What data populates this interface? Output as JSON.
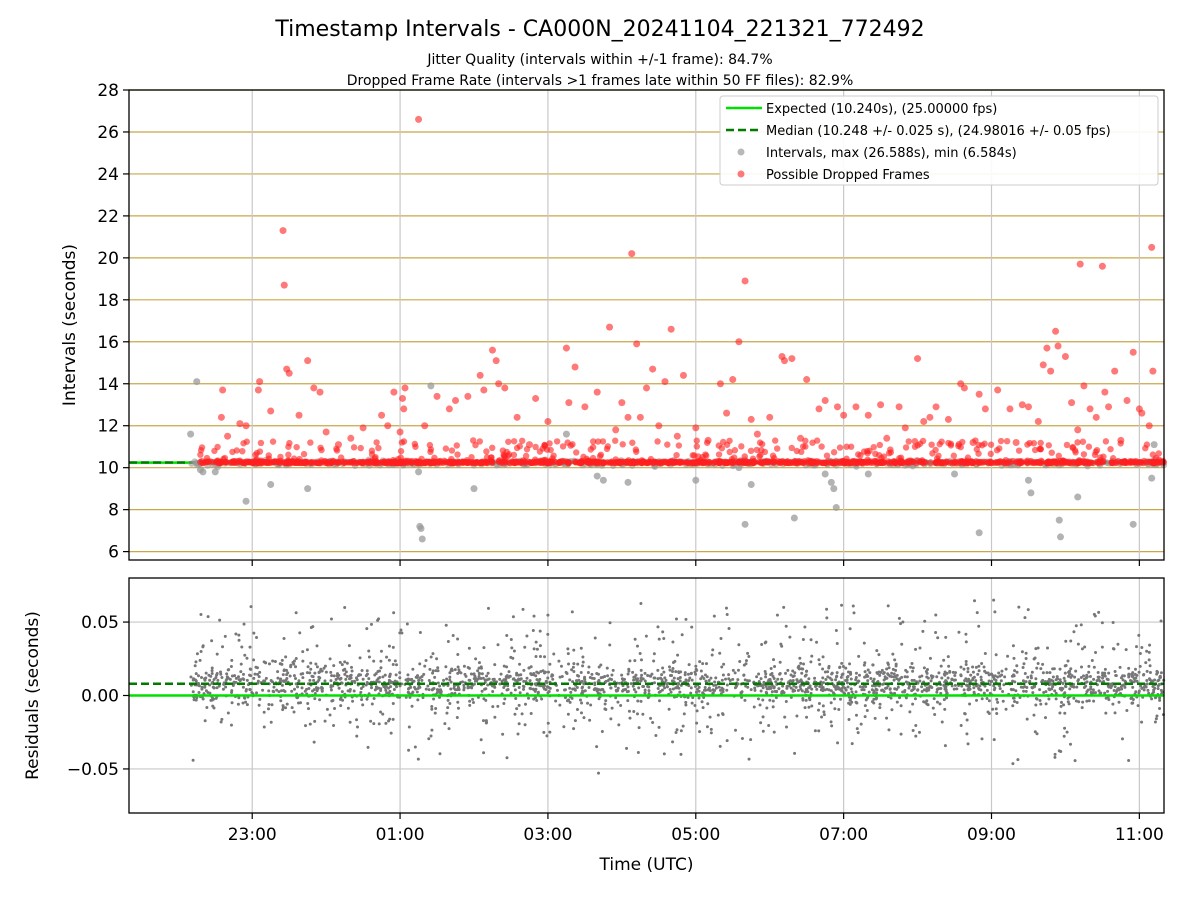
{
  "figure": {
    "title": "Timestamp Intervals - CA000N_20241104_221321_772492",
    "subtitle_jitter": "Jitter Quality (intervals within +/-1 frame): 84.7%",
    "subtitle_dropped": "Dropped Frame Rate (intervals >1 frames late within 50 FF files): 82.9%"
  },
  "colors": {
    "expected_line": "#00e000",
    "median_line": "#007a00",
    "intervals_points": "#9a9a9a",
    "dropped_points": "#ff2020",
    "residual_points": "#777777",
    "gold_grid": "#c8a84a",
    "gray_grid": "#c8c8c8"
  },
  "chart_data": [
    {
      "type": "scatter",
      "panel": "intervals",
      "xlabel": "",
      "ylabel": "Intervals (seconds)",
      "x_range": [
        "2024-11-04 21:20",
        "2024-11-05 11:20"
      ],
      "ylim": [
        5.6,
        28
      ],
      "yticks": [
        "6",
        "8",
        "10",
        "12",
        "14",
        "16",
        "18",
        "20",
        "22",
        "24",
        "26",
        "28"
      ],
      "ytick_values": [
        6,
        8,
        10,
        12,
        14,
        16,
        18,
        20,
        22,
        24,
        26,
        28
      ],
      "grid": "horizontal gold lines at each y tick, vertical gray lines at each x tick",
      "legend_placement": "top-right",
      "expected_value": 10.24,
      "median_value": 10.248,
      "legend": [
        "Expected (10.240s), (25.00000 fps)",
        "Median (10.248 +/- 0.025 s), (24.98016 +/- 0.05 fps)",
        "Intervals, max (26.588s), min (6.584s)",
        "Possible Dropped Frames"
      ],
      "series": [
        {
          "name": "Possible Dropped Frames",
          "points": [
            [
              "2024-11-04 22:35",
              12.4
            ],
            [
              "2024-11-04 22:36",
              13.7
            ],
            [
              "2024-11-04 22:40",
              11.5
            ],
            [
              "2024-11-04 22:50",
              12.1
            ],
            [
              "2024-11-04 22:55",
              12.0
            ],
            [
              "2024-11-04 23:05",
              13.7
            ],
            [
              "2024-11-04 23:06",
              14.1
            ],
            [
              "2024-11-04 23:15",
              12.7
            ],
            [
              "2024-11-04 23:25",
              21.3
            ],
            [
              "2024-11-04 23:26",
              18.7
            ],
            [
              "2024-11-04 23:28",
              14.7
            ],
            [
              "2024-11-04 23:30",
              14.5
            ],
            [
              "2024-11-04 23:38",
              12.5
            ],
            [
              "2024-11-04 23:45",
              15.1
            ],
            [
              "2024-11-04 23:50",
              13.8
            ],
            [
              "2024-11-04 23:55",
              13.6
            ],
            [
              "2024-11-05 00:00",
              11.7
            ],
            [
              "2024-11-05 00:10",
              11.1
            ],
            [
              "2024-11-05 00:20",
              11.4
            ],
            [
              "2024-11-05 00:30",
              11.9
            ],
            [
              "2024-11-05 00:45",
              12.5
            ],
            [
              "2024-11-05 00:50",
              12.0
            ],
            [
              "2024-11-05 00:55",
              13.6
            ],
            [
              "2024-11-05 01:00",
              11.7
            ],
            [
              "2024-11-05 01:02",
              13.3
            ],
            [
              "2024-11-05 01:03",
              12.8
            ],
            [
              "2024-11-05 01:04",
              13.8
            ],
            [
              "2024-11-05 01:15",
              26.6
            ],
            [
              "2024-11-05 01:20",
              12.0
            ],
            [
              "2024-11-05 01:30",
              13.4
            ],
            [
              "2024-11-05 01:40",
              12.8
            ],
            [
              "2024-11-05 01:45",
              13.2
            ],
            [
              "2024-11-05 01:55",
              13.4
            ],
            [
              "2024-11-05 02:05",
              14.4
            ],
            [
              "2024-11-05 02:08",
              13.7
            ],
            [
              "2024-11-05 02:15",
              15.6
            ],
            [
              "2024-11-05 02:18",
              15.1
            ],
            [
              "2024-11-05 02:20",
              14.0
            ],
            [
              "2024-11-05 02:25",
              13.8
            ],
            [
              "2024-11-05 02:35",
              12.4
            ],
            [
              "2024-11-05 02:45",
              11.1
            ],
            [
              "2024-11-05 02:50",
              13.3
            ],
            [
              "2024-11-05 03:00",
              12.2
            ],
            [
              "2024-11-05 03:15",
              15.7
            ],
            [
              "2024-11-05 03:17",
              13.1
            ],
            [
              "2024-11-05 03:22",
              14.8
            ],
            [
              "2024-11-05 03:30",
              12.9
            ],
            [
              "2024-11-05 03:40",
              13.6
            ],
            [
              "2024-11-05 03:50",
              16.7
            ],
            [
              "2024-11-05 03:55",
              11.8
            ],
            [
              "2024-11-05 04:00",
              13.1
            ],
            [
              "2024-11-05 04:05",
              12.4
            ],
            [
              "2024-11-05 04:08",
              20.2
            ],
            [
              "2024-11-05 04:12",
              15.9
            ],
            [
              "2024-11-05 04:15",
              12.4
            ],
            [
              "2024-11-05 04:20",
              13.8
            ],
            [
              "2024-11-05 04:25",
              14.7
            ],
            [
              "2024-11-05 04:30",
              12.0
            ],
            [
              "2024-11-05 04:35",
              14.1
            ],
            [
              "2024-11-05 04:40",
              16.6
            ],
            [
              "2024-11-05 04:45",
              11.5
            ],
            [
              "2024-11-05 04:50",
              14.4
            ],
            [
              "2024-11-05 05:00",
              11.9
            ],
            [
              "2024-11-05 05:10",
              11.3
            ],
            [
              "2024-11-05 05:20",
              14.0
            ],
            [
              "2024-11-05 05:25",
              12.6
            ],
            [
              "2024-11-05 05:30",
              14.2
            ],
            [
              "2024-11-05 05:35",
              16.0
            ],
            [
              "2024-11-05 05:40",
              18.9
            ],
            [
              "2024-11-05 05:45",
              12.3
            ],
            [
              "2024-11-05 05:50",
              11.6
            ],
            [
              "2024-11-05 06:00",
              12.4
            ],
            [
              "2024-11-05 06:10",
              15.3
            ],
            [
              "2024-11-05 06:12",
              15.1
            ],
            [
              "2024-11-05 06:18",
              15.2
            ],
            [
              "2024-11-05 06:25",
              11.4
            ],
            [
              "2024-11-05 06:30",
              14.2
            ],
            [
              "2024-11-05 06:40",
              12.8
            ],
            [
              "2024-11-05 06:45",
              13.2
            ],
            [
              "2024-11-05 06:55",
              12.9
            ],
            [
              "2024-11-05 07:00",
              12.5
            ],
            [
              "2024-11-05 07:10",
              12.9
            ],
            [
              "2024-11-05 07:20",
              12.5
            ],
            [
              "2024-11-05 07:30",
              13.0
            ],
            [
              "2024-11-05 07:35",
              11.4
            ],
            [
              "2024-11-05 07:45",
              12.9
            ],
            [
              "2024-11-05 07:50",
              11.9
            ],
            [
              "2024-11-05 08:00",
              15.2
            ],
            [
              "2024-11-05 08:05",
              12.2
            ],
            [
              "2024-11-05 08:10",
              12.4
            ],
            [
              "2024-11-05 08:15",
              12.9
            ],
            [
              "2024-11-05 08:25",
              12.3
            ],
            [
              "2024-11-05 08:35",
              14.0
            ],
            [
              "2024-11-05 08:38",
              13.8
            ],
            [
              "2024-11-05 08:45",
              11.2
            ],
            [
              "2024-11-05 08:50",
              13.5
            ],
            [
              "2024-11-05 08:55",
              12.8
            ],
            [
              "2024-11-05 09:05",
              13.7
            ],
            [
              "2024-11-05 09:15",
              12.8
            ],
            [
              "2024-11-05 09:20",
              11.2
            ],
            [
              "2024-11-05 09:25",
              13.0
            ],
            [
              "2024-11-05 09:30",
              12.9
            ],
            [
              "2024-11-05 09:38",
              12.2
            ],
            [
              "2024-11-05 09:42",
              14.9
            ],
            [
              "2024-11-05 09:45",
              15.7
            ],
            [
              "2024-11-05 09:48",
              14.6
            ],
            [
              "2024-11-05 09:52",
              16.5
            ],
            [
              "2024-11-05 09:54",
              15.8
            ],
            [
              "2024-11-05 10:00",
              15.3
            ],
            [
              "2024-11-05 10:05",
              13.1
            ],
            [
              "2024-11-05 10:10",
              11.8
            ],
            [
              "2024-11-05 10:12",
              19.7
            ],
            [
              "2024-11-05 10:15",
              13.9
            ],
            [
              "2024-11-05 10:20",
              12.8
            ],
            [
              "2024-11-05 10:25",
              12.4
            ],
            [
              "2024-11-05 10:30",
              19.6
            ],
            [
              "2024-11-05 10:32",
              13.6
            ],
            [
              "2024-11-05 10:35",
              12.9
            ],
            [
              "2024-11-05 10:40",
              14.6
            ],
            [
              "2024-11-05 10:45",
              11.3
            ],
            [
              "2024-11-05 10:50",
              13.2
            ],
            [
              "2024-11-05 10:55",
              15.5
            ],
            [
              "2024-11-05 11:00",
              12.8
            ],
            [
              "2024-11-05 11:02",
              12.6
            ],
            [
              "2024-11-05 11:08",
              12.0
            ],
            [
              "2024-11-05 11:10",
              20.5
            ],
            [
              "2024-11-05 11:11",
              14.6
            ]
          ]
        },
        {
          "name": "Intervals, max (26.588s), min (6.584s)",
          "points": [
            [
              "2024-11-04 22:10",
              11.6
            ],
            [
              "2024-11-04 22:15",
              14.1
            ],
            [
              "2024-11-04 22:18",
              9.9
            ],
            [
              "2024-11-04 22:20",
              9.8
            ],
            [
              "2024-11-04 22:30",
              9.8
            ],
            [
              "2024-11-04 22:55",
              8.4
            ],
            [
              "2024-11-04 23:15",
              9.2
            ],
            [
              "2024-11-04 23:45",
              9.0
            ],
            [
              "2024-11-05 01:15",
              9.8
            ],
            [
              "2024-11-05 01:16",
              7.2
            ],
            [
              "2024-11-05 01:17",
              7.1
            ],
            [
              "2024-11-05 01:18",
              6.6
            ],
            [
              "2024-11-05 01:25",
              13.9
            ],
            [
              "2024-11-05 02:00",
              9.0
            ],
            [
              "2024-11-05 03:15",
              11.6
            ],
            [
              "2024-11-05 03:40",
              9.6
            ],
            [
              "2024-11-05 03:45",
              9.4
            ],
            [
              "2024-11-05 04:05",
              9.3
            ],
            [
              "2024-11-05 05:00",
              9.4
            ],
            [
              "2024-11-05 05:35",
              10.0
            ],
            [
              "2024-11-05 05:40",
              7.3
            ],
            [
              "2024-11-05 05:45",
              9.2
            ],
            [
              "2024-11-05 06:20",
              7.6
            ],
            [
              "2024-11-05 06:45",
              9.7
            ],
            [
              "2024-11-05 06:50",
              9.3
            ],
            [
              "2024-11-05 06:52",
              9.0
            ],
            [
              "2024-11-05 06:54",
              8.1
            ],
            [
              "2024-11-05 07:20",
              9.7
            ],
            [
              "2024-11-05 08:30",
              9.7
            ],
            [
              "2024-11-05 08:50",
              6.9
            ],
            [
              "2024-11-05 09:30",
              9.4
            ],
            [
              "2024-11-05 09:32",
              8.8
            ],
            [
              "2024-11-05 09:55",
              7.5
            ],
            [
              "2024-11-05 09:56",
              6.7
            ],
            [
              "2024-11-05 10:10",
              8.6
            ],
            [
              "2024-11-05 10:55",
              7.3
            ],
            [
              "2024-11-05 11:10",
              9.5
            ],
            [
              "2024-11-05 11:12",
              11.1
            ]
          ]
        }
      ]
    },
    {
      "type": "scatter",
      "panel": "residuals",
      "xlabel": "Time (UTC)",
      "ylabel": "Residuals (seconds)",
      "x_range": [
        "2024-11-04 21:20",
        "2024-11-05 11:20"
      ],
      "xticks": [
        "23:00",
        "01:00",
        "03:00",
        "05:00",
        "07:00",
        "09:00",
        "11:00"
      ],
      "xtick_values": [
        "2024-11-04 23:00",
        "2024-11-05 01:00",
        "2024-11-05 03:00",
        "2024-11-05 05:00",
        "2024-11-05 07:00",
        "2024-11-05 09:00",
        "2024-11-05 11:00"
      ],
      "ylim": [
        -0.08,
        0.08
      ],
      "yticks": [
        "−0.05",
        "0.00",
        "0.05"
      ],
      "ytick_values": [
        -0.05,
        0.0,
        0.05
      ],
      "grid": "gray lines at each tick",
      "expected_residual": 0.0,
      "median_residual": 0.008,
      "data_span": [
        "2024-11-04 22:10",
        "2024-11-05 11:20"
      ],
      "residual_distribution": "dense band around 0.008 with spread to about ±0.05"
    }
  ]
}
